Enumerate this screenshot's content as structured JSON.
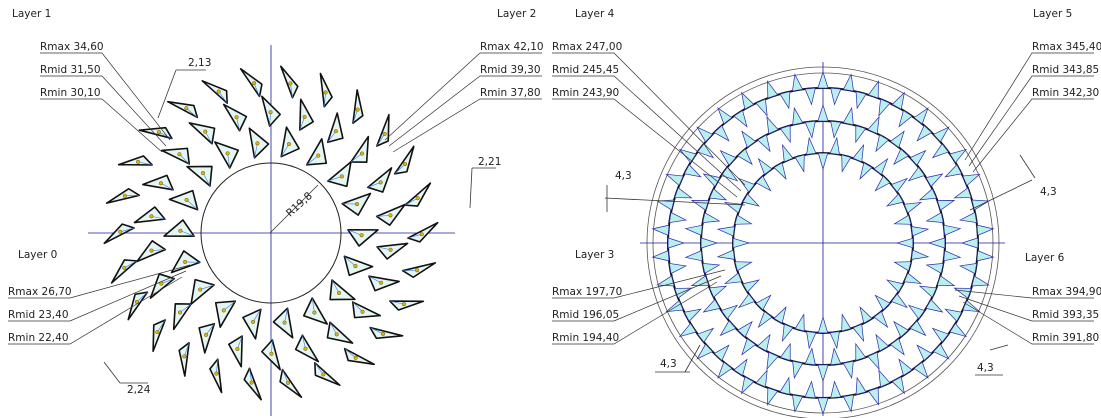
{
  "left_diagram": {
    "layer_labels": [
      "Layer 1",
      "Layer 2",
      "Layer 0"
    ],
    "radius_labels": [
      [
        "Rmax 34,60",
        "Rmid 31,50",
        "Rmin 30,10"
      ],
      [
        "Rmax 42,10",
        "Rmid 39,30",
        "Rmin 37,80"
      ],
      [
        "Rmax 26,70",
        "Rmid 23,40",
        "Rmin 22,40"
      ]
    ],
    "dimensions": [
      "2,13",
      "2,21",
      "2,24",
      "R19,8"
    ]
  },
  "right_diagram": {
    "layer_labels": [
      "Layer 4",
      "Layer 5",
      "Layer 3",
      "Layer 6"
    ],
    "radius_labels": [
      [
        "Rmax 247,00",
        "Rmid 245,45",
        "Rmin 243,90"
      ],
      [
        "Rmax 345,40",
        "Rmid 343,85",
        "Rmin 342,30"
      ],
      [
        "Rmax 197,70",
        "Rmid 196,05",
        "Rmin 194,40"
      ],
      [
        "Rmax 394,90",
        "Rmid 393,35",
        "Rmin 391,80"
      ]
    ],
    "dimensions": [
      "4,3",
      "4,3",
      "4,3",
      "4,3"
    ]
  }
}
